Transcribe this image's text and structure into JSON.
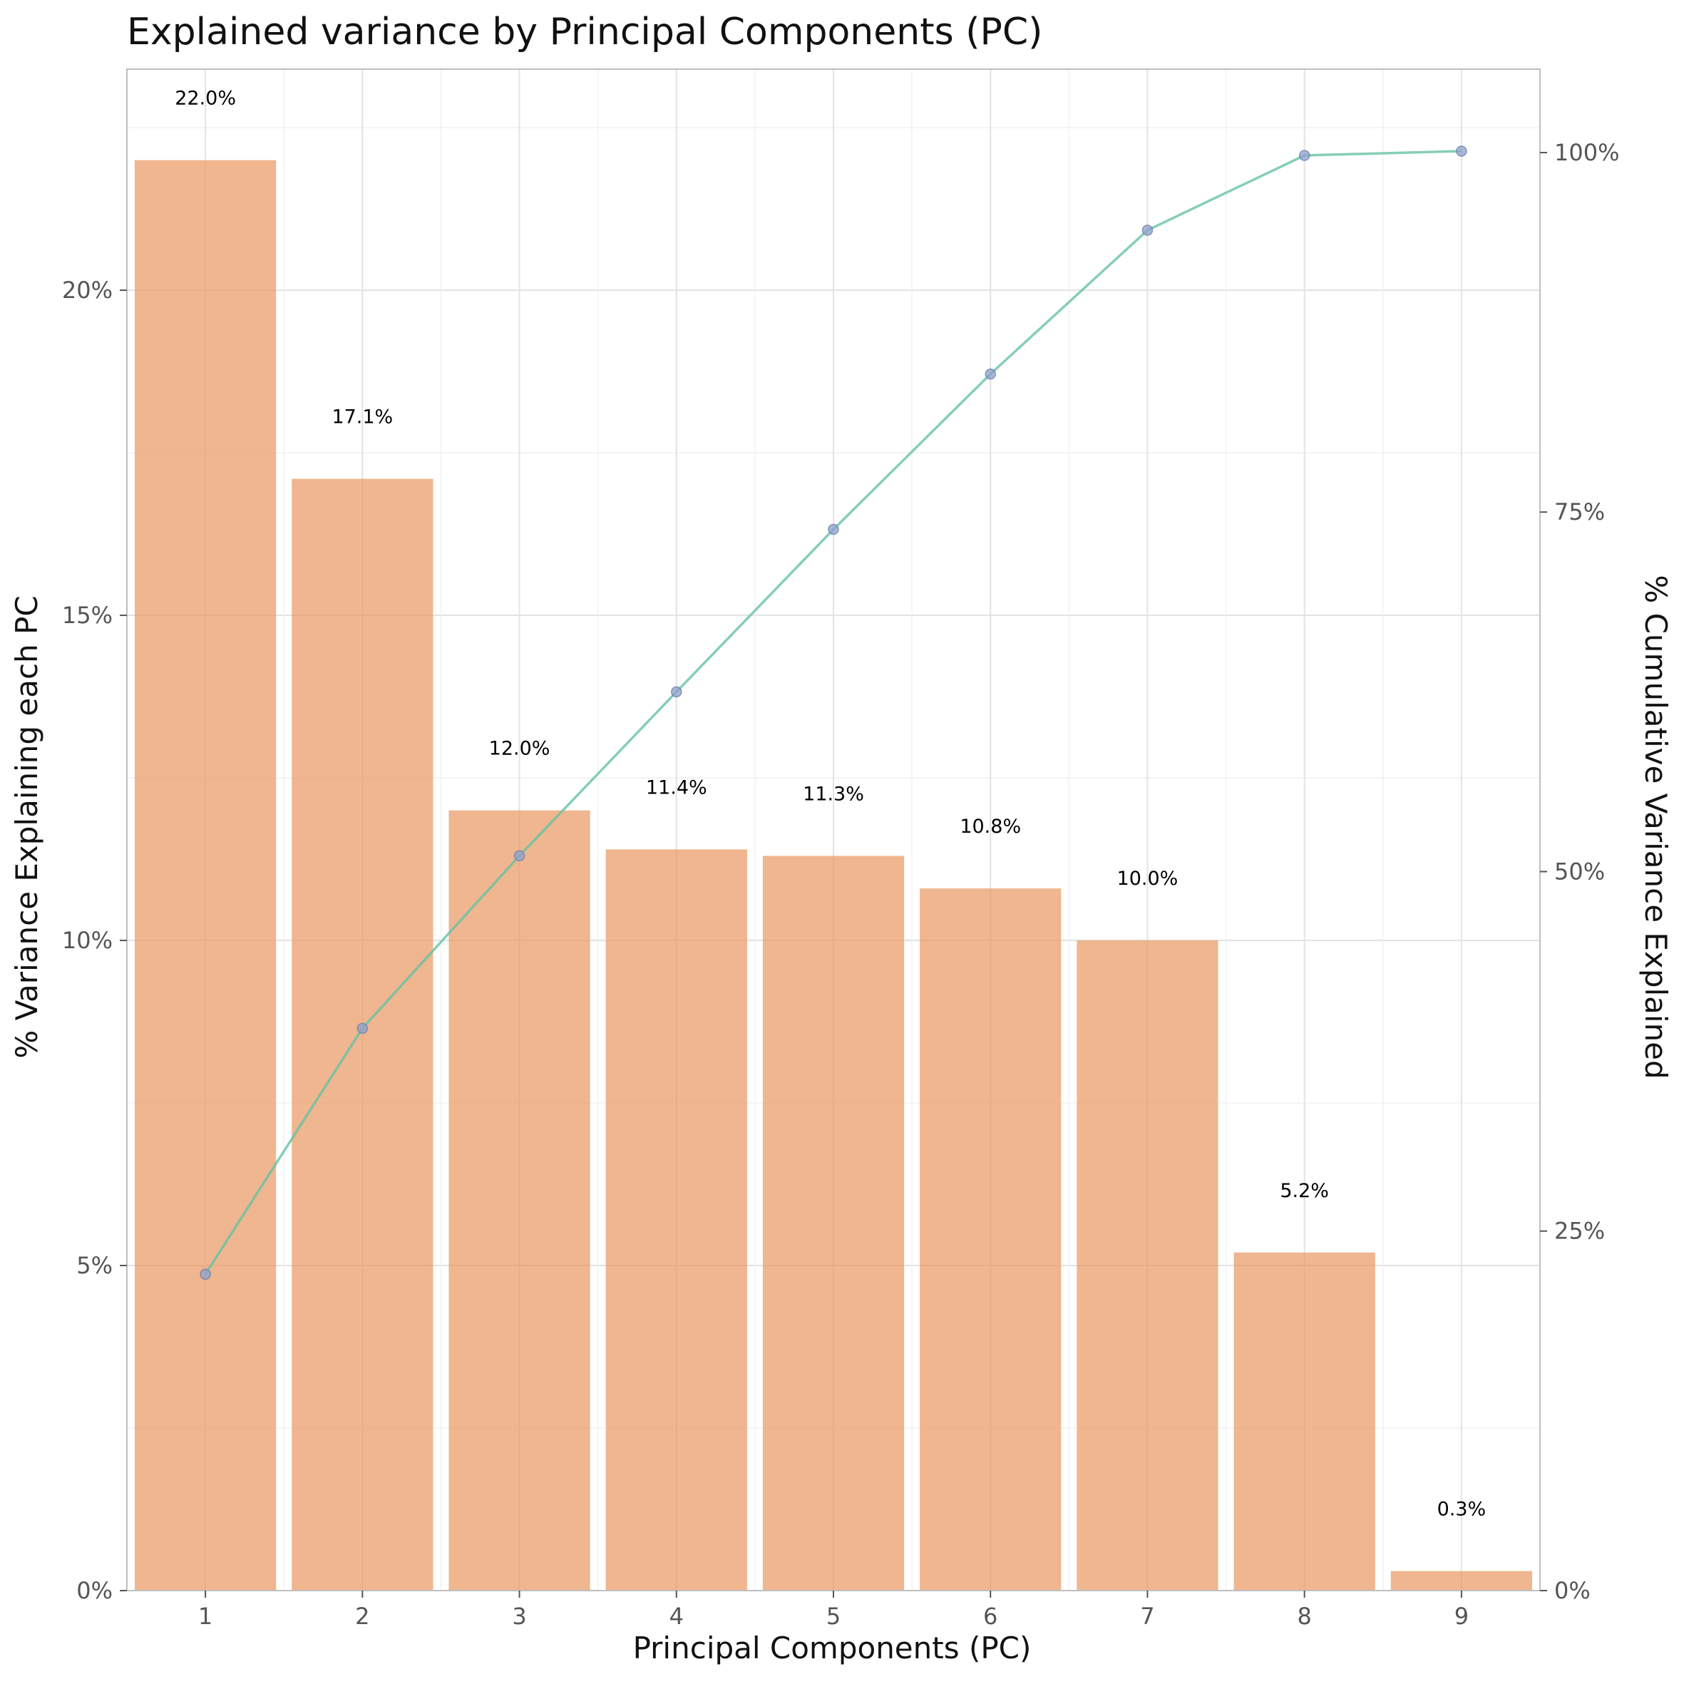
{
  "chart_data": {
    "type": "bar",
    "title": "Explained variance by Principal Components (PC)",
    "xlabel": "Principal Components (PC)",
    "ylabel": "% Variance Explaining each PC",
    "y2label": "% Cumulative Variance Explained",
    "categories": [
      "1",
      "2",
      "3",
      "4",
      "5",
      "6",
      "7",
      "8",
      "9"
    ],
    "values": [
      22.0,
      17.1,
      12.0,
      11.4,
      11.3,
      10.8,
      10.0,
      5.2,
      0.3
    ],
    "value_labels": [
      "22.0%",
      "17.1%",
      "12.0%",
      "11.4%",
      "11.3%",
      "10.8%",
      "10.0%",
      "5.2%",
      "0.3%"
    ],
    "cumulative": [
      22.0,
      39.1,
      51.1,
      62.5,
      73.8,
      84.6,
      94.6,
      99.8,
      100.1
    ],
    "ylim": [
      0,
      23.4
    ],
    "y2lim": [
      0,
      105.8
    ],
    "yticks": [
      0,
      5,
      10,
      15,
      20
    ],
    "ytick_labels": [
      "0%",
      "5%",
      "10%",
      "15%",
      "20%"
    ],
    "y2ticks": [
      0,
      25,
      50,
      75,
      100
    ],
    "y2tick_labels": [
      "0%",
      "25%",
      "50%",
      "75%",
      "100%"
    ],
    "grid": true,
    "colors": {
      "bar": "#e99a64",
      "line": "#66c2a5",
      "point": "#8da0cb",
      "grid": "#e3e3e3",
      "frame": "#bfbfbf"
    }
  }
}
